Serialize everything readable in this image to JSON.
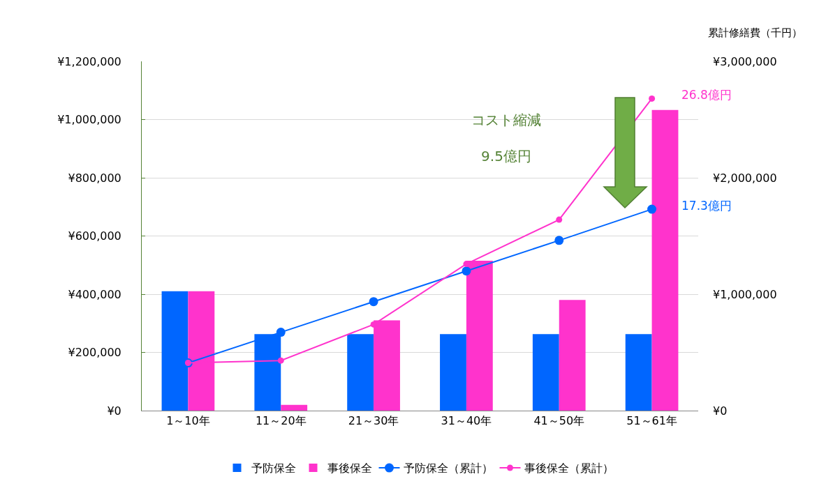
{
  "chart_data": {
    "type": "bar",
    "y2label": "累計修繕費（千円）",
    "categories": [
      "1～10年",
      "11～20年",
      "21～30年",
      "31～40年",
      "41～50年",
      "51～61年"
    ],
    "series": [
      {
        "name": "予防保全",
        "color": "#0066ff",
        "values": [
          410000,
          263000,
          263000,
          263000,
          263000,
          263000
        ]
      },
      {
        "name": "事後保全",
        "color": "#ff33cc",
        "values": [
          410000,
          20000,
          310000,
          515000,
          380000,
          1033000
        ]
      },
      {
        "name": "予防保全（累計）",
        "type": "line",
        "axis": "y2",
        "color": "#0066ff",
        "values": [
          410000,
          673000,
          936000,
          1199000,
          1462000,
          1730000
        ]
      },
      {
        "name": "事後保全（累計）",
        "type": "line",
        "axis": "y2",
        "color": "#ff33cc",
        "values": [
          410000,
          430000,
          740000,
          1260000,
          1640000,
          2680000
        ]
      }
    ],
    "ylim": [
      0,
      1200000
    ],
    "yticks": [
      {
        "value": 0,
        "label": "¥0"
      },
      {
        "value": 200000,
        "label": "¥200,000"
      },
      {
        "value": 400000,
        "label": "¥400,000"
      },
      {
        "value": 600000,
        "label": "¥600,000"
      },
      {
        "value": 800000,
        "label": "¥800,000"
      },
      {
        "value": 1000000,
        "label": "¥1,000,000"
      },
      {
        "value": 1200000,
        "label": "¥1,200,000"
      }
    ],
    "y2lim": [
      0,
      3000000
    ],
    "y2ticks": [
      {
        "value": 0,
        "label": "¥0"
      },
      {
        "value": 1000000,
        "label": "¥1,000,000"
      },
      {
        "value": 2000000,
        "label": "¥2,000,000"
      },
      {
        "value": 3000000,
        "label": "¥3,000,000"
      }
    ],
    "annotations": [
      "26.8億円",
      "17.3億円",
      "コスト縮減\n9.5億円"
    ],
    "grid": "y",
    "legend": "bottom",
    "marker": "circle",
    "line_style": "solid"
  }
}
